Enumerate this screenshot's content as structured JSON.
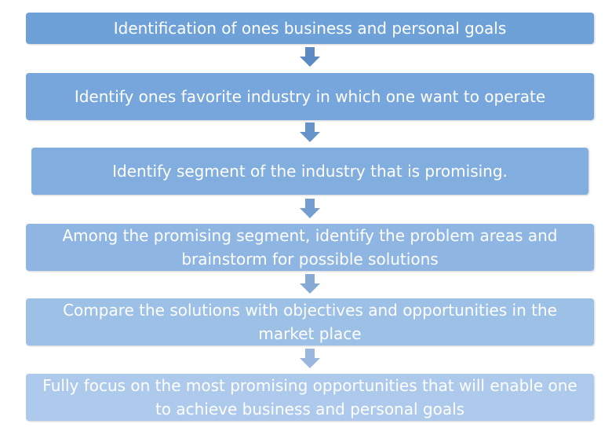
{
  "steps": [
    {
      "text": "Identification of ones business and personal goals",
      "color": "#6fa1d9"
    },
    {
      "text": "Identify ones favorite industry in which one want to operate",
      "color": "#76a6dc"
    },
    {
      "text": "Identify segment of the industry that is promising.",
      "color": "#82aedf"
    },
    {
      "text": "Among the promising segment, identify the problem areas and brainstorm for possible solutions",
      "color": "#8fb6e3"
    },
    {
      "text": "Compare the solutions with objectives and opportunities in the market place",
      "color": "#9dc0e7"
    },
    {
      "text": "Fully focus on the most promising opportunities that will enable one to achieve business and personal goals",
      "color": "#adcaec"
    }
  ],
  "arrow_colors": [
    "#5b8ac4",
    "#6693ca",
    "#749dd0",
    "#86a9d6",
    "#9ab8de"
  ]
}
